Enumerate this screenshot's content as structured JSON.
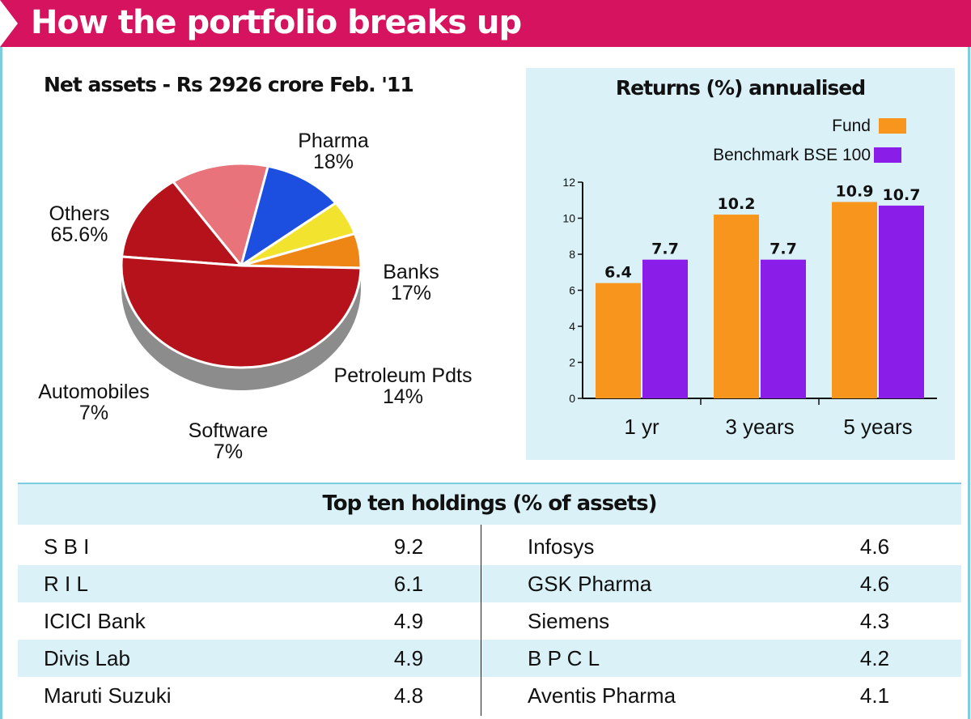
{
  "banner": {
    "title": "How the portfolio breaks up"
  },
  "chart_data": [
    {
      "type": "pie",
      "title": "Net assets - Rs 2926 crore Feb. '11",
      "slices": [
        {
          "label": "Pharma",
          "value": 18,
          "display": "18%",
          "color": "#b5121b"
        },
        {
          "label": "Banks",
          "value": 17,
          "display": "17%",
          "color": "#e8737a"
        },
        {
          "label": "Petroleum Pdts",
          "value": 14,
          "display": "14%",
          "color": "#1c4fe0"
        },
        {
          "label": "Software",
          "value": 7,
          "display": "7%",
          "color": "#f2e42e"
        },
        {
          "label": "Automobiles",
          "value": 7,
          "display": "7%",
          "color": "#ee8616"
        },
        {
          "label": "Others",
          "value": 65.6,
          "display": "65.6%",
          "color": "#b5121b"
        }
      ]
    },
    {
      "type": "bar",
      "title": "Returns (%) annualised",
      "categories": [
        "1 yr",
        "3 years",
        "5 years"
      ],
      "series": [
        {
          "name": "Fund",
          "values": [
            6.4,
            10.2,
            10.9
          ],
          "color": "#f7951d"
        },
        {
          "name": "Benchmark BSE 100",
          "values": [
            7.7,
            7.7,
            10.7
          ],
          "color": "#8a1ee8"
        }
      ],
      "ylim": [
        0,
        12
      ],
      "yticks": [
        0,
        2,
        4,
        6,
        8,
        10,
        12
      ],
      "legend": "top-right"
    }
  ],
  "holdings": {
    "title": "Top ten holdings (% of assets)",
    "left": [
      {
        "name": "S B I",
        "value": "9.2"
      },
      {
        "name": "R I L",
        "value": "6.1"
      },
      {
        "name": "ICICI Bank",
        "value": "4.9"
      },
      {
        "name": "Divis Lab",
        "value": "4.9"
      },
      {
        "name": "Maruti Suzuki",
        "value": "4.8"
      }
    ],
    "right": [
      {
        "name": "Infosys",
        "value": "4.6"
      },
      {
        "name": "GSK Pharma",
        "value": "4.6"
      },
      {
        "name": "Siemens",
        "value": "4.3"
      },
      {
        "name": "B P C L",
        "value": "4.2"
      },
      {
        "name": "Aventis Pharma",
        "value": "4.1"
      }
    ]
  }
}
